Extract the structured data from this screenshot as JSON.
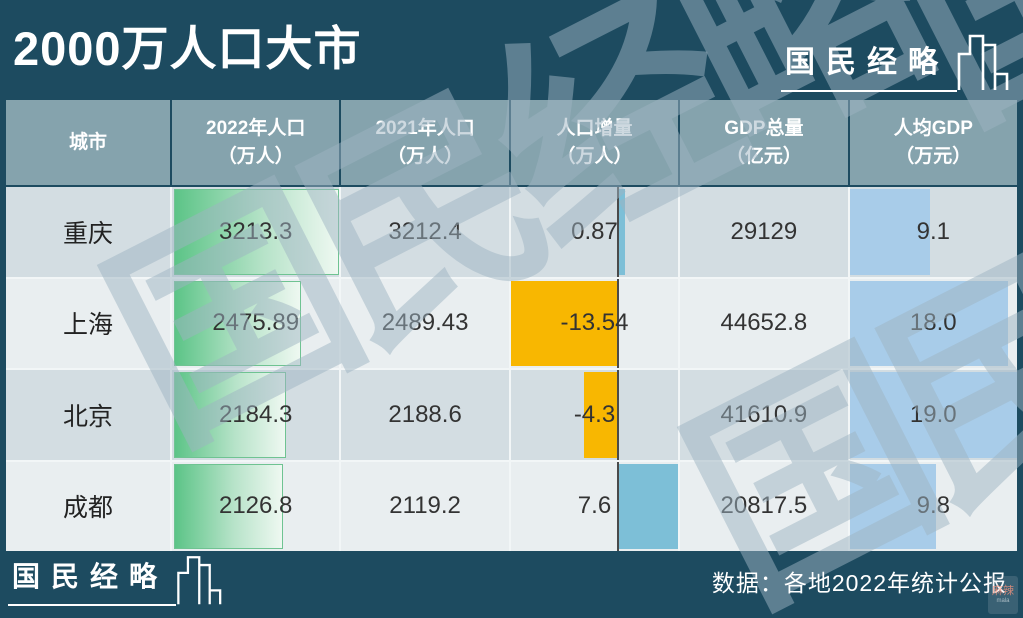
{
  "title": "2000万人口大市",
  "brand": {
    "logo_text": "国民经略"
  },
  "watermark": "国民经略",
  "source_note": "数据：各地2022年统计公报",
  "corner_stamp": {
    "text": "麻辣",
    "subtext": "mala"
  },
  "table": {
    "columns": [
      {
        "key": "city",
        "label": "城市",
        "sub": ""
      },
      {
        "key": "pop2022",
        "label": "2022年人口",
        "sub": "（万人）"
      },
      {
        "key": "pop2021",
        "label": "2021年人口",
        "sub": "（万人）"
      },
      {
        "key": "delta",
        "label": "人口增量",
        "sub": "（万人）"
      },
      {
        "key": "gdp",
        "label": "GDP总量",
        "sub": "（亿元）"
      },
      {
        "key": "gdppc",
        "label": "人均GDP",
        "sub": "（万元）"
      }
    ],
    "rows": [
      {
        "city": "重庆",
        "pop2022": "3213.3",
        "pop2021": "3212.4",
        "delta": "0.87",
        "gdp": "29129",
        "gdppc": "9.1"
      },
      {
        "city": "上海",
        "pop2022": "2475.89",
        "pop2021": "2489.43",
        "delta": "-13.54",
        "gdp": "44652.8",
        "gdppc": "18.0"
      },
      {
        "city": "北京",
        "pop2022": "2184.3",
        "pop2021": "2188.6",
        "delta": "-4.3",
        "gdp": "41610.9",
        "gdppc": "19.0"
      },
      {
        "city": "成都",
        "pop2022": "2126.8",
        "pop2021": "2119.2",
        "delta": "7.6",
        "gdp": "20817.5",
        "gdppc": "9.8"
      }
    ]
  },
  "chart_data": {
    "type": "table",
    "title": "2000万人口大市",
    "columns": [
      "城市",
      "2022年人口（万人）",
      "2021年人口（万人）",
      "人口增量（万人）",
      "GDP总量（亿元）",
      "人均GDP（万元）"
    ],
    "rows": [
      [
        "重庆",
        3213.3,
        3212.4,
        0.87,
        29129,
        9.1
      ],
      [
        "上海",
        2475.89,
        2489.43,
        -13.54,
        44652.8,
        18.0
      ],
      [
        "北京",
        2184.3,
        2188.6,
        -4.3,
        41610.9,
        19.0
      ],
      [
        "成都",
        2126.8,
        2119.2,
        7.6,
        20817.5,
        9.8
      ]
    ],
    "data_bars": {
      "pop2022": {
        "style": "green-gradient",
        "scale": "proportional-to-max",
        "max": 3213.3
      },
      "delta": {
        "style": "diverging",
        "positive_color": "blue",
        "negative_color": "orange",
        "min": -13.54,
        "max": 7.6
      },
      "gdppc": {
        "style": "solid-blue",
        "scale": "proportional-to-max",
        "max": 19.0
      }
    },
    "source": "数据：各地2022年统计公报"
  },
  "colors": {
    "background": "#1d4b60",
    "header_bg": "#85a3ad",
    "row_odd_bg": "#d3dde2",
    "row_even_bg": "#e9eef0",
    "bar_green_start": "#5cc487",
    "bar_green_mid": "#b7e3c9",
    "bar_green_end": "#eef8f1",
    "bar_green_border": "#6fc392",
    "bar_orange": "#f8b701",
    "bar_blue_delta": "#7dbfd7",
    "bar_blue_gdppc": "#a8cce9",
    "baseline": "#4a4a4a",
    "watermark": "rgba(158,180,194,0.5)"
  }
}
